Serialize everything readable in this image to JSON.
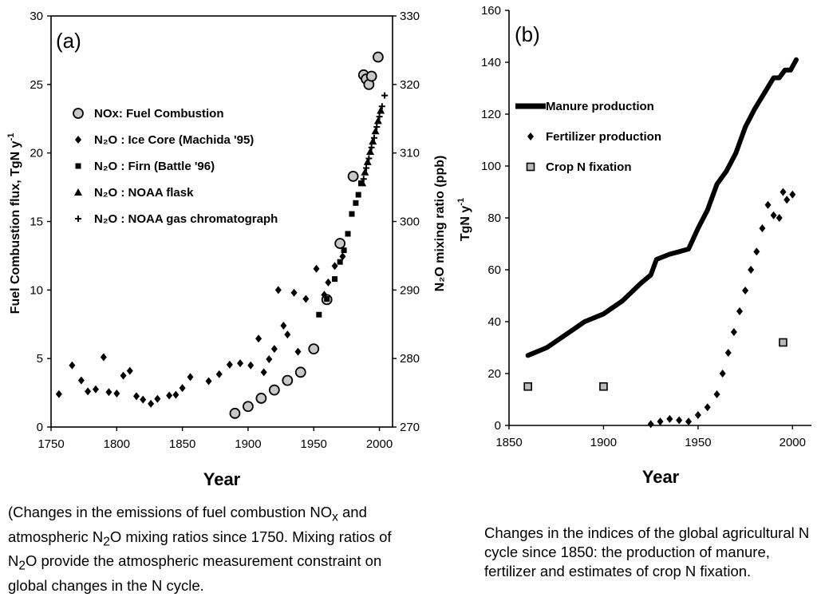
{
  "chart_data": [
    {
      "type": "scatter",
      "panel_label": "(a)",
      "title": "",
      "xlabel": "Year",
      "ylabel": "Fuel Combustion flux, TgN y",
      "ylabel_sup": "-1",
      "y2label": "N₂O mixing ratio (ppb)",
      "xlim": [
        1750,
        2010
      ],
      "ylim": [
        0,
        30
      ],
      "y2lim": [
        270,
        330
      ],
      "x_ticks": [
        "1750",
        "1800",
        "1850",
        "1900",
        "1950",
        "2000"
      ],
      "y_ticks": [
        "0",
        "5",
        "10",
        "15",
        "20",
        "25",
        "30"
      ],
      "y2_ticks": [
        "270",
        "280",
        "290",
        "300",
        "310",
        "320",
        "330"
      ],
      "legend_position": "upper-left",
      "series": [
        {
          "name": "NOx: Fuel Combustion",
          "marker": "circle",
          "axis": "left",
          "points": [
            [
              1890,
              1.0
            ],
            [
              1900,
              1.5
            ],
            [
              1910,
              2.1
            ],
            [
              1920,
              2.7
            ],
            [
              1930,
              3.4
            ],
            [
              1940,
              4.0
            ],
            [
              1950,
              5.7
            ],
            [
              1960,
              9.3
            ],
            [
              1970,
              13.4
            ],
            [
              1980,
              18.3
            ],
            [
              1988,
              25.7
            ],
            [
              1990,
              25.4
            ],
            [
              1992,
              25.0
            ],
            [
              1994,
              25.6
            ],
            [
              1999,
              27.0
            ]
          ]
        },
        {
          "name": "N₂O : Ice Core (Machida '95)",
          "marker": "diamond",
          "axis": "right",
          "points": [
            [
              1756,
              274.8
            ],
            [
              1766,
              279.0
            ],
            [
              1773,
              276.8
            ],
            [
              1778,
              275.2
            ],
            [
              1784,
              275.5
            ],
            [
              1790,
              280.2
            ],
            [
              1794,
              275.1
            ],
            [
              1800,
              274.9
            ],
            [
              1805,
              277.5
            ],
            [
              1810,
              278.2
            ],
            [
              1815,
              274.5
            ],
            [
              1820,
              274.0
            ],
            [
              1826,
              273.4
            ],
            [
              1831,
              274.1
            ],
            [
              1840,
              274.6
            ],
            [
              1845,
              274.7
            ],
            [
              1850,
              275.7
            ],
            [
              1856,
              277.3
            ],
            [
              1870,
              276.7
            ],
            [
              1878,
              277.7
            ],
            [
              1886,
              279.1
            ],
            [
              1894,
              279.3
            ],
            [
              1902,
              279.0
            ],
            [
              1908,
              282.9
            ],
            [
              1912,
              278.0
            ],
            [
              1916,
              279.9
            ],
            [
              1920,
              281.4
            ],
            [
              1923,
              290.0
            ],
            [
              1927,
              284.8
            ],
            [
              1930,
              283.5
            ],
            [
              1935,
              289.6
            ],
            [
              1938,
              281.0
            ],
            [
              1944,
              288.7
            ],
            [
              1952,
              293.1
            ],
            [
              1958,
              289.3
            ],
            [
              1961,
              291.1
            ],
            [
              1966,
              293.5
            ],
            [
              1972,
              294.9
            ]
          ]
        },
        {
          "name": "N₂O : Firn (Battle '96)",
          "marker": "square",
          "axis": "right",
          "points": [
            [
              1954,
              286.4
            ],
            [
              1960,
              288.7
            ],
            [
              1966,
              291.6
            ],
            [
              1970,
              294.1
            ],
            [
              1973,
              295.8
            ],
            [
              1976,
              298.2
            ],
            [
              1979,
              301.1
            ],
            [
              1982,
              302.7
            ],
            [
              1984,
              303.9
            ],
            [
              1986,
              305.6
            ]
          ]
        },
        {
          "name": "N₂O : NOAA flask",
          "marker": "triangle",
          "axis": "right",
          "points": [
            [
              1987,
              305.6
            ],
            [
              1989,
              307.2
            ],
            [
              1991,
              308.7
            ],
            [
              1993,
              310.2
            ],
            [
              1995,
              311.7
            ],
            [
              1997,
              313.2
            ],
            [
              1999,
              314.7
            ],
            [
              2001,
              316.2
            ]
          ]
        },
        {
          "name": "N₂O : NOAA gas chromatograph",
          "marker": "plus",
          "axis": "right",
          "points": [
            [
              1988,
              306.2
            ],
            [
              1990,
              307.8
            ],
            [
              1992,
              309.2
            ],
            [
              1994,
              310.8
            ],
            [
              1996,
              312.2
            ],
            [
              1998,
              313.8
            ],
            [
              2000,
              315.3
            ],
            [
              2002,
              316.8
            ],
            [
              2004,
              318.4
            ]
          ]
        }
      ]
    },
    {
      "type": "scatter",
      "panel_label": "(b)",
      "title": "",
      "xlabel": "Year",
      "ylabel": "TgN y",
      "ylabel_sup": "-1",
      "xlim": [
        1850,
        2010
      ],
      "ylim": [
        0,
        160
      ],
      "x_ticks": [
        "1850",
        "1900",
        "1950",
        "2000"
      ],
      "y_ticks": [
        "0",
        "20",
        "40",
        "60",
        "80",
        "100",
        "120",
        "140",
        "160"
      ],
      "legend_position": "upper-left",
      "series": [
        {
          "name": "Manure production",
          "marker": "thick-line",
          "points": [
            [
              1860,
              27
            ],
            [
              1870,
              30
            ],
            [
              1880,
              35
            ],
            [
              1890,
              40
            ],
            [
              1900,
              43
            ],
            [
              1910,
              48
            ],
            [
              1920,
              55
            ],
            [
              1925,
              58
            ],
            [
              1928,
              64
            ],
            [
              1935,
              66
            ],
            [
              1940,
              67
            ],
            [
              1945,
              68
            ],
            [
              1950,
              76
            ],
            [
              1955,
              83
            ],
            [
              1960,
              93
            ],
            [
              1965,
              98
            ],
            [
              1970,
              105
            ],
            [
              1975,
              115
            ],
            [
              1980,
              122
            ],
            [
              1985,
              128
            ],
            [
              1990,
              134
            ],
            [
              1993,
              134
            ],
            [
              1996,
              137
            ],
            [
              1999,
              137
            ],
            [
              2002,
              141
            ]
          ]
        },
        {
          "name": "Fertilizer production",
          "marker": "diamond",
          "points": [
            [
              1925,
              0.5
            ],
            [
              1930,
              1.5
            ],
            [
              1935,
              2.5
            ],
            [
              1940,
              2.0
            ],
            [
              1945,
              1.5
            ],
            [
              1950,
              4
            ],
            [
              1955,
              7
            ],
            [
              1960,
              12
            ],
            [
              1963,
              20
            ],
            [
              1966,
              28
            ],
            [
              1969,
              36
            ],
            [
              1972,
              44
            ],
            [
              1975,
              52
            ],
            [
              1978,
              60
            ],
            [
              1981,
              67
            ],
            [
              1984,
              76
            ],
            [
              1987,
              85
            ],
            [
              1990,
              81
            ],
            [
              1993,
              80
            ],
            [
              1995,
              90
            ],
            [
              1997,
              87
            ],
            [
              2000,
              89
            ]
          ]
        },
        {
          "name": "Crop N fixation",
          "marker": "square",
          "points": [
            [
              1860,
              15
            ],
            [
              1900,
              15
            ],
            [
              1995,
              32
            ]
          ]
        }
      ]
    }
  ],
  "captions": {
    "a": {
      "p1": "(Changes in the emissions of fuel combustion NO",
      "p1_sub": "x",
      "p2": " and atmospheric N",
      "p2_sub": "2",
      "p3": "O mixing ratios since 1750. Mixing ratios of N",
      "p3_sub": "2",
      "p4": "O provide the atmospheric measurement constraint on global changes in the N cycle."
    },
    "b": "Changes in the indices of the global agricultural N cycle since 1850: the production of manure, fertilizer and estimates of crop N fixation."
  }
}
